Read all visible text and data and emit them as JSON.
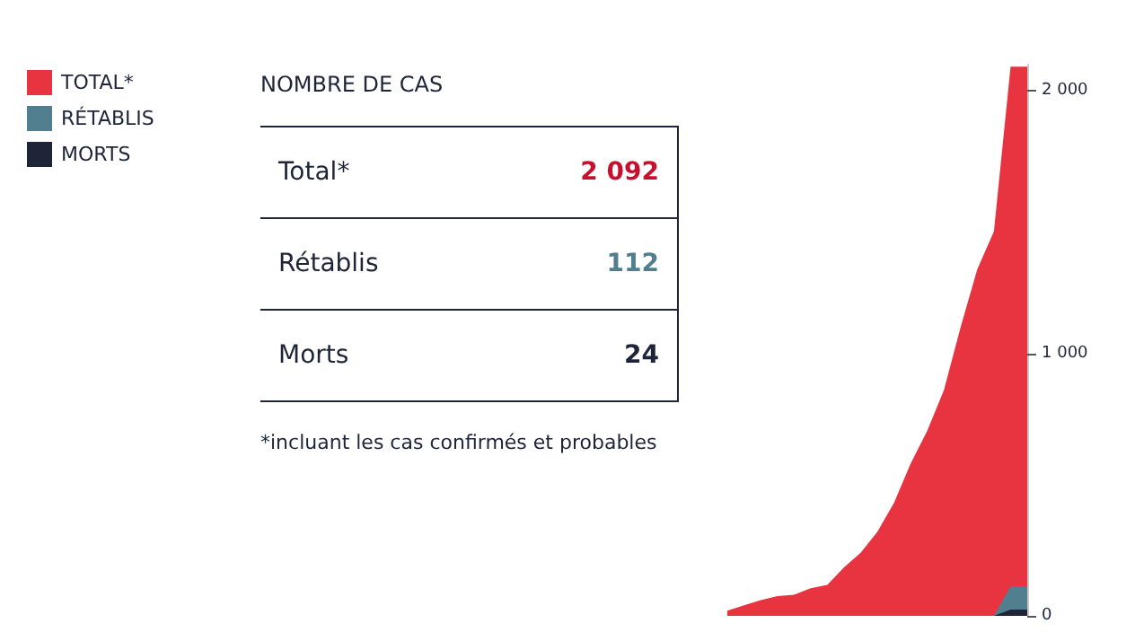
{
  "chart_data": [
    {
      "type": "other",
      "title": "NOMBRE DE CAS",
      "categories": [
        "Total*",
        "Rétablis",
        "Morts"
      ],
      "values": [
        2092,
        112,
        24
      ],
      "data_labels": true,
      "colors": [
        "#c8102e",
        "#527f90",
        "#1e2538"
      ],
      "annotations": [
        "*incluant les cas confirmés et probables"
      ]
    },
    {
      "type": "area",
      "categories": [
        null,
        null,
        null,
        null,
        null,
        null,
        null,
        null,
        null,
        null,
        null,
        null,
        null,
        null,
        null,
        null,
        null,
        null,
        null
      ],
      "series": [
        {
          "name": "TOTAL*",
          "color": "#e83341",
          "values": [
            20,
            40,
            60,
            75,
            80,
            105,
            118,
            185,
            240,
            320,
            430,
            580,
            705,
            860,
            1100,
            1320,
            1465,
            2092,
            2092
          ]
        },
        {
          "name": "RÉTABLIS",
          "color": "#527f90",
          "values": [
            null,
            null,
            null,
            null,
            null,
            null,
            null,
            null,
            null,
            null,
            null,
            null,
            null,
            null,
            null,
            null,
            0,
            112,
            112
          ]
        },
        {
          "name": "MORTS",
          "color": "#1e2538",
          "values": [
            null,
            null,
            null,
            null,
            null,
            null,
            null,
            null,
            null,
            null,
            null,
            null,
            null,
            null,
            null,
            null,
            0,
            24,
            24
          ]
        }
      ],
      "ylim": [
        0,
        2100
      ],
      "yticks": [
        {
          "value": 0,
          "label": "0"
        },
        {
          "value": 1000,
          "label": "1 000"
        },
        {
          "value": 2000,
          "label": "2 000"
        }
      ],
      "grid": false,
      "legend": "top left"
    }
  ]
}
